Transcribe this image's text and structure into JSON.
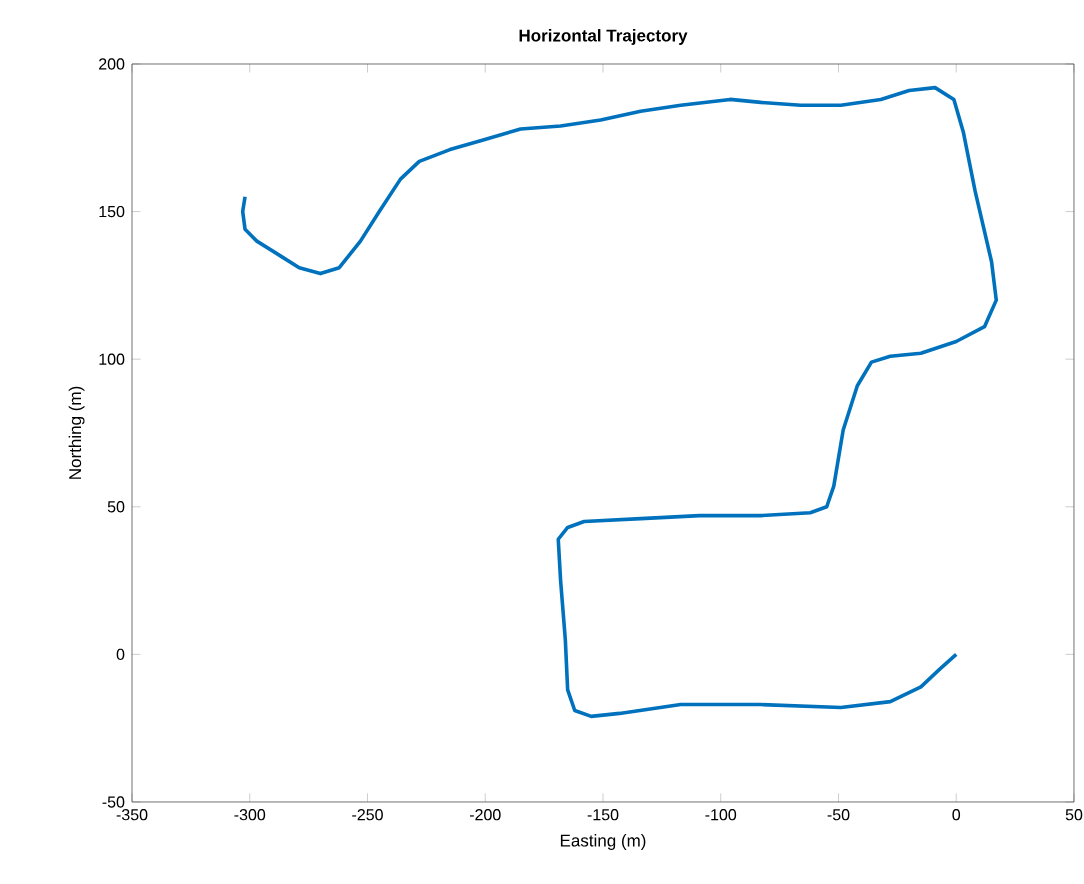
{
  "chart_data": {
    "type": "line",
    "title": "Horizontal Trajectory",
    "xlabel": "Easting (m)",
    "ylabel": "Northing (m)",
    "xlim": [
      -350,
      50
    ],
    "ylim": [
      -50,
      200
    ],
    "xticks": [
      -350,
      -300,
      -250,
      -200,
      -150,
      -100,
      -50,
      0,
      50
    ],
    "yticks": [
      -50,
      0,
      50,
      100,
      150,
      200
    ],
    "grid": false,
    "series": [
      {
        "color": "#0072bd",
        "x": [
          0,
          -7,
          -15,
          -28,
          -49,
          -83,
          -117,
          -143,
          -155,
          -162,
          -165,
          -166,
          -168,
          -169,
          -165,
          -158,
          -134,
          -109,
          -83,
          -62,
          -55,
          -52,
          -48,
          -42,
          -36,
          -28,
          -15,
          0,
          12,
          17,
          15,
          8,
          3,
          -1,
          -9,
          -20,
          -32,
          -49,
          -66,
          -83,
          -96,
          -117,
          -134,
          -151,
          -168,
          -185,
          -202,
          -215,
          -228,
          -236,
          -245,
          -253,
          -262,
          -270,
          -279,
          -287,
          -297,
          -302,
          -303,
          -302
        ],
        "values": [
          0,
          -5,
          -11,
          -16,
          -18,
          -17,
          -17,
          -20,
          -21,
          -19,
          -12,
          5,
          25,
          39,
          43,
          45,
          46,
          47,
          47,
          48,
          50,
          57,
          76,
          91,
          99,
          101,
          102,
          106,
          111,
          120,
          133,
          157,
          177,
          188,
          192,
          191,
          188,
          186,
          186,
          187,
          188,
          186,
          184,
          181,
          179,
          178,
          174,
          171,
          167,
          161,
          150,
          140,
          131,
          129,
          131,
          135,
          140,
          144,
          150,
          155
        ]
      }
    ]
  }
}
